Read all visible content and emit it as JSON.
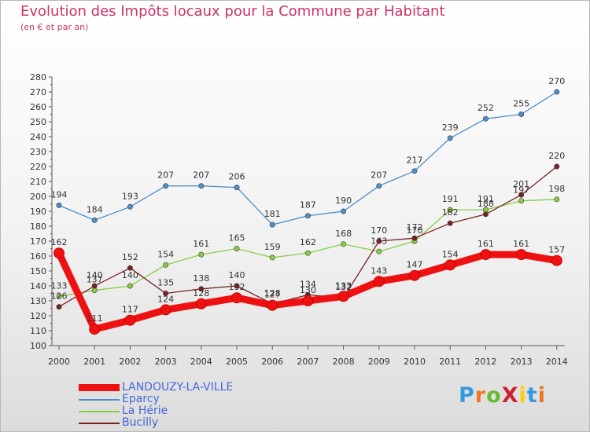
{
  "title": "Evolution des Impôts locaux pour la Commune par Habitant",
  "subtitle": "(en € et par an)",
  "logo": {
    "text": "ProXiti",
    "letter_colors": [
      "#3399dd",
      "#ee7722",
      "#66bb33",
      "#cc2233",
      "#ffcc00",
      "#3399dd",
      "#ee7722"
    ]
  },
  "chart_data": {
    "type": "line",
    "categories": [
      "2000",
      "2001",
      "2002",
      "2003",
      "2004",
      "2005",
      "2006",
      "2007",
      "2008",
      "2009",
      "2010",
      "2011",
      "2012",
      "2013",
      "2014"
    ],
    "ylim": [
      100,
      280
    ],
    "yticks": [
      100,
      110,
      120,
      130,
      140,
      150,
      160,
      170,
      180,
      190,
      200,
      210,
      220,
      230,
      240,
      250,
      260,
      270,
      280
    ],
    "grid": false,
    "legend_position": "bottom-left",
    "series": [
      {
        "name": "LANDOUZY-LA-VILLE",
        "color": "#ee1111",
        "values": [
          162,
          111,
          117,
          124,
          128,
          132,
          127,
          130,
          133,
          143,
          147,
          154,
          161,
          161,
          157
        ],
        "emphasis": true
      },
      {
        "name": "Eparcy",
        "color": "#4d8ec8",
        "values": [
          194,
          184,
          193,
          207,
          207,
          206,
          181,
          187,
          190,
          207,
          217,
          239,
          252,
          255,
          270
        ],
        "emphasis": false
      },
      {
        "name": "La Hérie",
        "color": "#88cc44",
        "values": [
          133,
          137,
          140,
          154,
          161,
          165,
          159,
          162,
          168,
          163,
          170,
          191,
          191,
          197,
          198
        ],
        "emphasis": false
      },
      {
        "name": "Bucilly",
        "color": "#772222",
        "values": [
          126,
          140,
          152,
          135,
          138,
          140,
          128,
          134,
          132,
          170,
          172,
          182,
          188,
          201,
          220
        ],
        "emphasis": false
      }
    ]
  }
}
